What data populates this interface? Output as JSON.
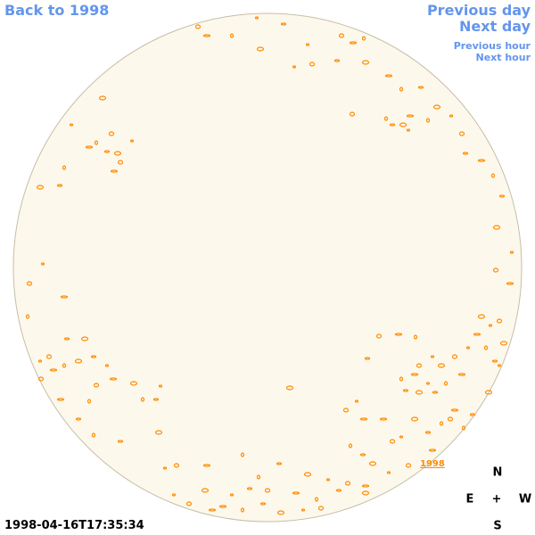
{
  "nav": {
    "back": "Back to 1998",
    "previous_day": "Previous day",
    "next_day": "Next day",
    "previous_hour": "Previous hour",
    "next_hour": "Next hour"
  },
  "disk_label": "1998",
  "compass": {
    "north": "N",
    "east": "E",
    "center": "+",
    "west": "W",
    "south": "S"
  },
  "timestamp": "1998-04-16T17:35:34"
}
